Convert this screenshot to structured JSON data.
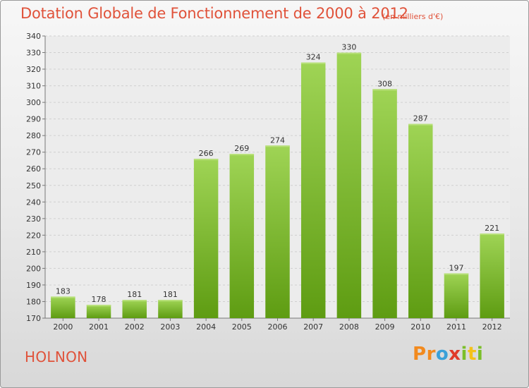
{
  "title": "Dotation Globale de Fonctionnement de 2000 à 2012",
  "unit_note": "(en milliers d'€)",
  "commune": "HOLNON",
  "logo": "Proxiti",
  "colors": {
    "title": "#e0523a",
    "bar_top": "#9fd455",
    "bar_bottom": "#5e9c12"
  },
  "chart_data": {
    "type": "bar",
    "categories": [
      "2000",
      "2001",
      "2002",
      "2003",
      "2004",
      "2005",
      "2006",
      "2007",
      "2008",
      "2009",
      "2010",
      "2011",
      "2012"
    ],
    "values": [
      183,
      178,
      181,
      181,
      266,
      269,
      274,
      324,
      330,
      308,
      287,
      197,
      221
    ],
    "ylim": [
      170,
      340
    ],
    "ytick_step": 10,
    "grid": true,
    "legend": "none"
  }
}
